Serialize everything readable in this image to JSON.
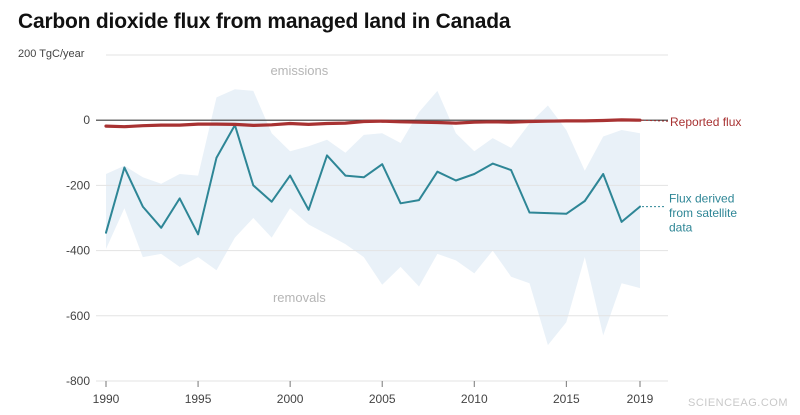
{
  "title": "Carbon dioxide flux from managed land in Canada",
  "watermark": "SCIENCEAG.COM",
  "colors": {
    "reported": "#a83232",
    "satellite": "#2e8696",
    "band": "#e9f1f8",
    "grid": "#e3e3e3",
    "zero": "#3a3a3a",
    "text": "#444444",
    "region_label": "#b5b5b5"
  },
  "chart_data": {
    "type": "line",
    "title": "Carbon dioxide flux from managed land in Canada",
    "ylabel_unit": "TgC/year",
    "xlim": [
      1990,
      2019
    ],
    "ylim": [
      -800,
      200
    ],
    "x_ticks": [
      1990,
      1995,
      2000,
      2005,
      2010,
      2015,
      2019
    ],
    "y_ticks": [
      {
        "value": 200,
        "label": "200 TgC/year"
      },
      {
        "value": 0,
        "label": "0"
      },
      {
        "value": -200,
        "label": "-200"
      },
      {
        "value": -400,
        "label": "-400"
      },
      {
        "value": -600,
        "label": "-600"
      },
      {
        "value": -800,
        "label": "-800"
      }
    ],
    "region_labels": {
      "top": "emissions",
      "bottom": "removals"
    },
    "x": [
      1990,
      1991,
      1992,
      1993,
      1994,
      1995,
      1996,
      1997,
      1998,
      1999,
      2000,
      2001,
      2002,
      2003,
      2004,
      2005,
      2006,
      2007,
      2008,
      2009,
      2010,
      2011,
      2012,
      2013,
      2014,
      2015,
      2016,
      2017,
      2018,
      2019
    ],
    "series": [
      {
        "name": "Reported flux",
        "label": "Reported flux",
        "values": [
          -18,
          -20,
          -17,
          -15,
          -15,
          -12,
          -12,
          -13,
          -16,
          -14,
          -10,
          -13,
          -10,
          -9,
          -4,
          -3,
          -5,
          -6,
          -7,
          -9,
          -6,
          -5,
          -6,
          -4,
          -3,
          -2,
          -2,
          -1,
          1,
          0
        ]
      },
      {
        "name": "Flux derived from satellite data",
        "label_lines": [
          "Flux derived",
          "from satellite",
          "data"
        ],
        "values": [
          -345,
          -145,
          -265,
          -330,
          -240,
          -350,
          -115,
          -15,
          -200,
          -250,
          -170,
          -275,
          -108,
          -170,
          -175,
          -135,
          -255,
          -245,
          -158,
          -185,
          -165,
          -133,
          -153,
          -283,
          -285,
          -287,
          -248,
          -165,
          -312,
          -265
        ],
        "band_upper": [
          -165,
          -140,
          -175,
          -195,
          -165,
          -170,
          70,
          95,
          90,
          -40,
          -95,
          -80,
          -60,
          -100,
          -45,
          -40,
          -70,
          25,
          90,
          -40,
          -95,
          -55,
          -85,
          -10,
          45,
          -30,
          -155,
          -50,
          -30,
          -40
        ],
        "band_lower": [
          -395,
          -270,
          -420,
          -410,
          -450,
          -420,
          -460,
          -360,
          -300,
          -360,
          -270,
          -320,
          -350,
          -380,
          -420,
          -505,
          -450,
          -510,
          -410,
          -430,
          -470,
          -400,
          -480,
          -500,
          -690,
          -620,
          -420,
          -660,
          -500,
          -515
        ]
      }
    ]
  }
}
